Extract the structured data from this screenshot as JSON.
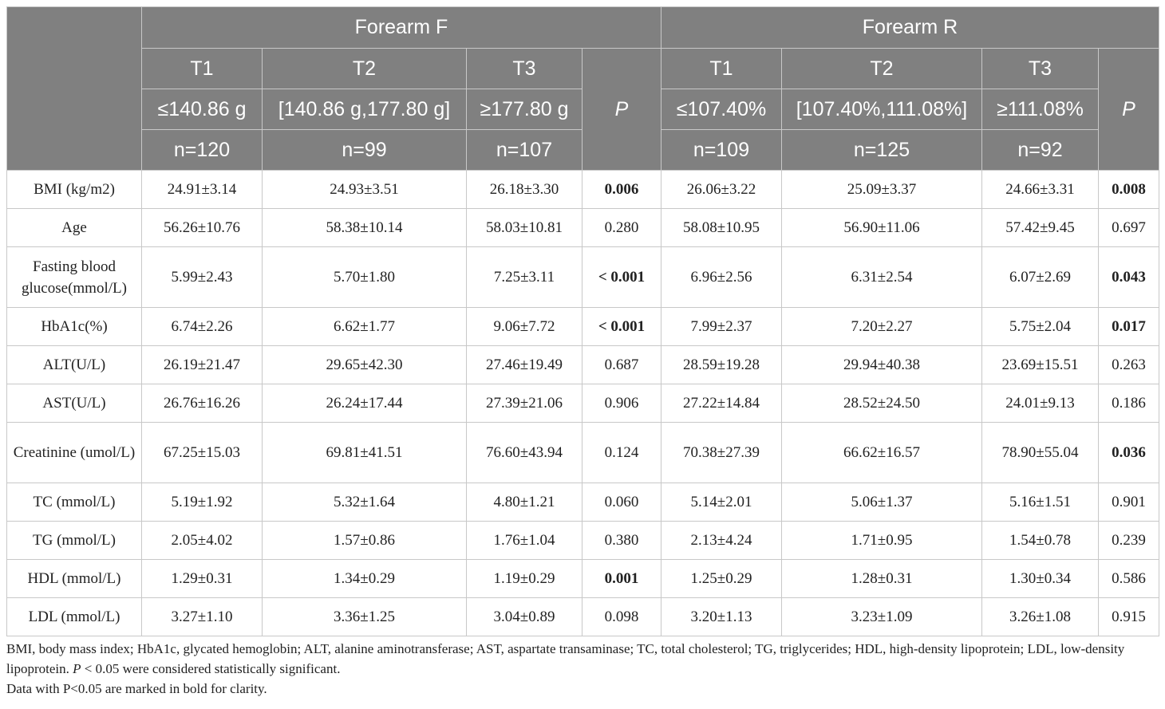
{
  "header": {
    "group_f": "Forearm F",
    "group_r": "Forearm R",
    "p_label": "P",
    "f_cols": [
      {
        "tertile": "T1",
        "range": "≤140.86 g",
        "n": "n=120"
      },
      {
        "tertile": "T2",
        "range": "[140.86 g,177.80 g]",
        "n": "n=99"
      },
      {
        "tertile": "T3",
        "range": "≥177.80 g",
        "n": "n=107"
      }
    ],
    "r_cols": [
      {
        "tertile": "T1",
        "range": "≤107.40%",
        "n": "n=109"
      },
      {
        "tertile": "T2",
        "range": "[107.40%,111.08%]",
        "n": "n=125"
      },
      {
        "tertile": "T3",
        "range": "≥111.08%",
        "n": "n=92"
      }
    ]
  },
  "rows": [
    {
      "label": "BMI (kg/m2)",
      "f": [
        "24.91±3.14",
        "24.93±3.51",
        "26.18±3.30"
      ],
      "fp": "0.006",
      "r": [
        "26.06±3.22",
        "25.09±3.37",
        "24.66±3.31"
      ],
      "rp": "0.008"
    },
    {
      "label": "Age",
      "f": [
        "56.26±10.76",
        "58.38±10.14",
        "58.03±10.81"
      ],
      "fp": "0.280",
      "r": [
        "58.08±10.95",
        "56.90±11.06",
        "57.42±9.45"
      ],
      "rp": "0.697"
    },
    {
      "label": "Fasting blood glucose(mmol/L)",
      "f": [
        "5.99±2.43",
        "5.70±1.80",
        "7.25±3.11"
      ],
      "fp": "< 0.001",
      "r": [
        "6.96±2.56",
        "6.31±2.54",
        "6.07±2.69"
      ],
      "rp": "0.043"
    },
    {
      "label": "HbA1c(%)",
      "f": [
        "6.74±2.26",
        "6.62±1.77",
        "9.06±7.72"
      ],
      "fp": "< 0.001",
      "r": [
        "7.99±2.37",
        "7.20±2.27",
        "5.75±2.04"
      ],
      "rp": "0.017"
    },
    {
      "label": "ALT(U/L)",
      "f": [
        "26.19±21.47",
        "29.65±42.30",
        "27.46±19.49"
      ],
      "fp": "0.687",
      "r": [
        "28.59±19.28",
        "29.94±40.38",
        "23.69±15.51"
      ],
      "rp": "0.263"
    },
    {
      "label": "AST(U/L)",
      "f": [
        "26.76±16.26",
        "26.24±17.44",
        "27.39±21.06"
      ],
      "fp": "0.906",
      "r": [
        "27.22±14.84",
        "28.52±24.50",
        "24.01±9.13"
      ],
      "rp": "0.186"
    },
    {
      "label": "Creatinine (umol/L)",
      "f": [
        "67.25±15.03",
        "69.81±41.51",
        "76.60±43.94"
      ],
      "fp": "0.124",
      "r": [
        "70.38±27.39",
        "66.62±16.57",
        "78.90±55.04"
      ],
      "rp": "0.036"
    },
    {
      "label": "TC (mmol/L)",
      "f": [
        "5.19±1.92",
        "5.32±1.64",
        "4.80±1.21"
      ],
      "fp": "0.060",
      "r": [
        "5.14±2.01",
        "5.06±1.37",
        "5.16±1.51"
      ],
      "rp": "0.901"
    },
    {
      "label": "TG (mmol/L)",
      "f": [
        "2.05±4.02",
        "1.57±0.86",
        "1.76±1.04"
      ],
      "fp": "0.380",
      "r": [
        "2.13±4.24",
        "1.71±0.95",
        "1.54±0.78"
      ],
      "rp": "0.239"
    },
    {
      "label": "HDL (mmol/L)",
      "f": [
        "1.29±0.31",
        "1.34±0.29",
        "1.19±0.29"
      ],
      "fp": "0.001",
      "r": [
        "1.25±0.29",
        "1.28±0.31",
        "1.30±0.34"
      ],
      "rp": "0.586"
    },
    {
      "label": "LDL (mmol/L)",
      "f": [
        "3.27±1.10",
        "3.36±1.25",
        "3.04±0.89"
      ],
      "fp": "0.098",
      "r": [
        "3.20±1.13",
        "3.23±1.09",
        "3.26±1.08"
      ],
      "rp": "0.915"
    }
  ],
  "footnotes": {
    "abbreviations": "BMI, body mass index; HbA1c, glycated hemoglobin; ALT, alanine aminotransferase; AST, aspartate transaminase; TC, total cholesterol; TG, triglycerides; HDL, high-density lipoprotein; LDL, low-density lipoprotein.",
    "sig_p": "P",
    "sig_rest": " < 0.05 were considered statistically significant.",
    "bold_note": "Data with P<0.05 are marked in bold for clarity."
  }
}
